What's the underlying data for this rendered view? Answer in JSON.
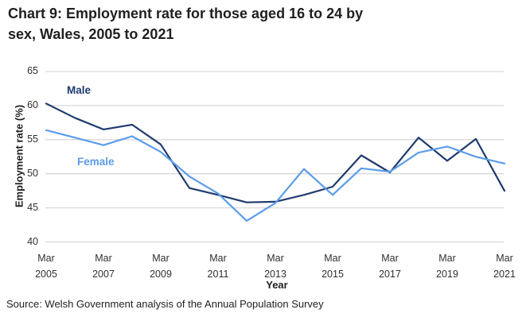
{
  "title": {
    "full": "Chart 9: Employment rate for those aged 16 to 24 by sex, Wales, 2005 to 2021",
    "line1": "Chart 9: Employment rate for those aged 16 to 24 by",
    "line2": "sex, Wales, 2005 to 2021"
  },
  "source": "Source: Welsh Government analysis of the Annual Population Survey",
  "chart_data": {
    "type": "line",
    "title": "Chart 9: Employment rate for those aged 16 to 24 by sex, Wales, 2005 to 2021",
    "xlabel": "Year",
    "ylabel": "Employment rate (%)",
    "ylim": [
      40,
      65
    ],
    "yticks": [
      40,
      45,
      50,
      55,
      60,
      65
    ],
    "grid": true,
    "grid_color": "#D9D9D9",
    "background": "#FFFFFF",
    "legend_position": "inline-labels-on-lines",
    "x": [
      2005,
      2006,
      2007,
      2008,
      2009,
      2010,
      2011,
      2012,
      2013,
      2014,
      2015,
      2016,
      2017,
      2018,
      2019,
      2020,
      2021
    ],
    "xticks": [
      {
        "month": "Mar",
        "year": "2005"
      },
      {
        "month": "Mar",
        "year": "2007"
      },
      {
        "month": "Mar",
        "year": "2009"
      },
      {
        "month": "Mar",
        "year": "2011"
      },
      {
        "month": "Mar",
        "year": "2013"
      },
      {
        "month": "Mar",
        "year": "2015"
      },
      {
        "month": "Mar",
        "year": "2017"
      },
      {
        "month": "Mar",
        "year": "2019"
      },
      {
        "month": "Mar",
        "year": "2021"
      }
    ],
    "series": [
      {
        "name": "Male",
        "color": "#1F3A6E",
        "values": [
          60.3,
          58.2,
          56.5,
          57.2,
          54.3,
          47.9,
          46.9,
          45.8,
          45.9,
          46.9,
          48.1,
          52.7,
          50.2,
          55.3,
          51.9,
          55.1,
          47.5
        ]
      },
      {
        "name": "Female",
        "color": "#5B9CEA",
        "values": [
          56.4,
          55.3,
          54.2,
          55.5,
          53.2,
          49.6,
          47.1,
          43.1,
          45.7,
          50.7,
          46.9,
          50.8,
          50.3,
          53.1,
          54.0,
          52.5,
          51.5
        ]
      }
    ]
  }
}
